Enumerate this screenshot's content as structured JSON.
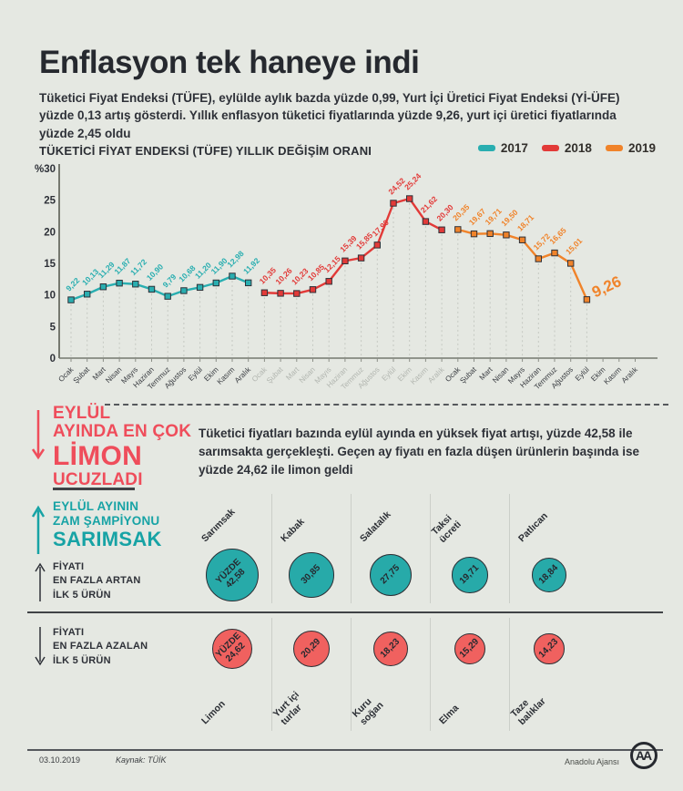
{
  "title": "Enflasyon tek haneye indi",
  "intro": "Tüketici Fiyat Endeksi (TÜFE), eylülde aylık bazda yüzde 0,99, Yurt İçi Üretici Fiyat Endeksi (Yİ-ÜFE) yüzde 0,13 artış gösterdi. Yıllık enflasyon tüketici fiyatlarında yüzde 9,26, yurt içi üretici fiyatlarında yüzde 2,45 oldu",
  "colors": {
    "teal": "#29aeb0",
    "red": "#e23a38",
    "orange": "#f0832a",
    "coral": "#ef4d5b",
    "teal_heading": "#17a3a5",
    "circle_teal": "#27aaa9",
    "circle_red": "#f0615f",
    "dark": "#2e3138",
    "muted_month": "#b2b6b0",
    "background": "#e5e8e2"
  },
  "chart_data": {
    "type": "line",
    "title": "TÜKETİCİ FİYAT ENDEKSİ (TÜFE) YILLIK DEĞİŞİM ORANI",
    "ylabel_top": "%30",
    "yticks": [
      30,
      25,
      20,
      15,
      10,
      5,
      0
    ],
    "ylim": [
      0,
      30
    ],
    "grid": false,
    "legend_position": "top-right",
    "months": [
      "Ocak",
      "Şubat",
      "Mart",
      "Nisan",
      "Mayıs",
      "Haziran",
      "Temmuz",
      "Ağustos",
      "Eylül",
      "Ekim",
      "Kasım",
      "Aralık"
    ],
    "month_label_colors": [
      "#3a3d42",
      "#b2b6b0",
      "#3a3d42"
    ],
    "series": [
      {
        "name": "2017",
        "color": "#29aeb0",
        "values": [
          9.22,
          10.13,
          11.29,
          11.87,
          11.72,
          10.9,
          9.79,
          10.68,
          11.2,
          11.9,
          12.98,
          11.92
        ]
      },
      {
        "name": "2018",
        "color": "#e23a38",
        "values": [
          10.35,
          10.26,
          10.23,
          10.85,
          12.15,
          15.39,
          15.85,
          17.9,
          24.52,
          25.24,
          21.62,
          20.3
        ]
      },
      {
        "name": "2019",
        "color": "#f0832a",
        "values": [
          20.35,
          19.67,
          19.71,
          19.5,
          18.71,
          15.72,
          16.65,
          15.01,
          9.26
        ]
      }
    ],
    "highlight_last_label": "9,26"
  },
  "cheapest_block": {
    "line1": "EYLÜL",
    "line2": "AYINDA EN ÇOK",
    "line3": "LİMON",
    "line4": "UCUZLADI"
  },
  "paragraph": "Tüketici fiyatları bazında eylül ayında en yüksek fiyat artışı, yüzde 42,58 ile sarımsakta gerçekleşti. Geçen ay fiyatı en fazla düşen ürünlerin başında ise yüzde 24,62 ile limon geldi",
  "champion_block": {
    "line1": "EYLÜL AYININ",
    "line2": "ZAM ŞAMPİYONU",
    "line3": "SARIMSAK"
  },
  "increase_row": {
    "label_line1": "FİYATI",
    "label_line2": "EN FAZLA ARTAN",
    "label_line3": "İLK 5 ÜRÜN",
    "value_prefix": "YÜZDE",
    "items": [
      {
        "name": "Sarımsak",
        "value": 42.58
      },
      {
        "name": "Kabak",
        "value": 30.85
      },
      {
        "name": "Salatalık",
        "value": 27.75
      },
      {
        "name": "Taksi\nücreti",
        "value": 19.71
      },
      {
        "name": "Patlıcan",
        "value": 18.84
      }
    ]
  },
  "decrease_row": {
    "label_line1": "FİYATI",
    "label_line2": "EN FAZLA AZALAN",
    "label_line3": "İLK 5 ÜRÜN",
    "value_prefix": "YÜZDE",
    "items": [
      {
        "name": "Limon",
        "value": 24.62
      },
      {
        "name": "Yurt içi\nturlar",
        "value": 20.29
      },
      {
        "name": "Kuru\nsoğan",
        "value": 18.23
      },
      {
        "name": "Elma",
        "value": 15.29
      },
      {
        "name": "Taze\nbalıklar",
        "value": 14.23
      }
    ]
  },
  "footer": {
    "date": "03.10.2019",
    "source": "Kaynak: TÜİK",
    "agency": "Anadolu Ajansı",
    "logo_text": "AA"
  }
}
